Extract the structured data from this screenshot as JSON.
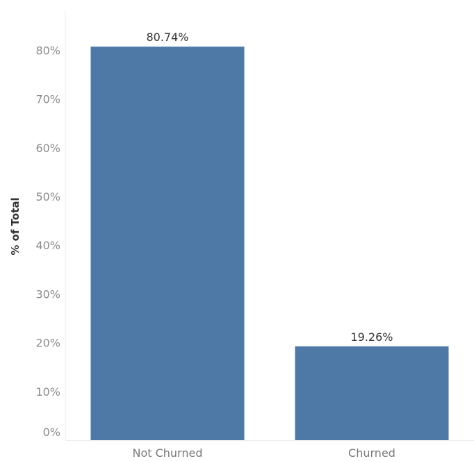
{
  "chart_data": {
    "type": "bar",
    "title": "",
    "xlabel": "",
    "ylabel": "% of Total",
    "categories": [
      "Not Churned",
      "Churned"
    ],
    "values": [
      80.74,
      19.26
    ],
    "value_labels": [
      "80.74%",
      "19.26%"
    ],
    "ylim": [
      0,
      88
    ],
    "yticks": [
      0,
      10,
      20,
      30,
      40,
      50,
      60,
      70,
      80
    ],
    "ytick_labels": [
      "0%",
      "10%",
      "20%",
      "30%",
      "40%",
      "50%",
      "60%",
      "70%",
      "80%"
    ],
    "grid": false,
    "legend": "none",
    "bar_color": "#4e79a7"
  }
}
